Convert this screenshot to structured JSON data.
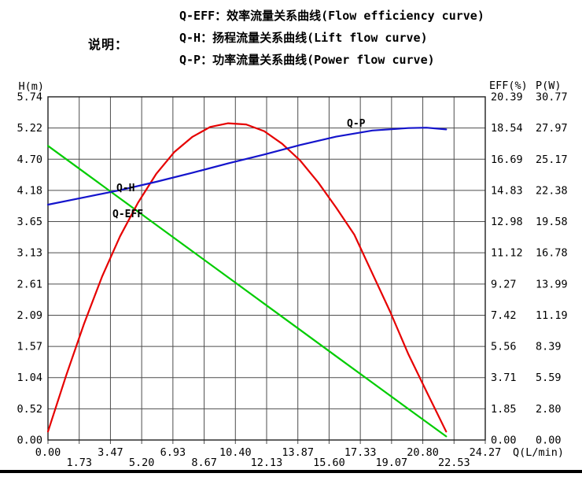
{
  "legend": {
    "title": "说明：",
    "lines": [
      "Q-EFF：效率流量关系曲线(Flow efficiency curve)",
      "Q-H：扬程流量关系曲线(Lift flow curve)",
      "Q-P：功率流量关系曲线(Power flow curve)"
    ]
  },
  "chart_data": {
    "type": "line",
    "grid": true,
    "colors": {
      "grid": "#4d4d4d",
      "border": "#1f1f1f",
      "text": "#000000"
    },
    "x_axis": {
      "label": "Q(L/min)",
      "min": 0,
      "max": 24.27,
      "ticks": [
        "0.00",
        "1.73",
        "3.47",
        "5.20",
        "6.93",
        "8.67",
        "10.40",
        "12.13",
        "13.87",
        "15.60",
        "17.33",
        "19.07",
        "20.80",
        "22.53",
        "24.27"
      ]
    },
    "y_axis_left": {
      "label": "H(m)",
      "min": 0,
      "max": 5.74,
      "ticks": [
        "5.74",
        "5.22",
        "4.70",
        "4.18",
        "3.65",
        "3.13",
        "2.61",
        "2.09",
        "1.57",
        "1.04",
        "0.52",
        "0.00"
      ]
    },
    "y_axis_eff": {
      "label": "EFF(%)",
      "min": 0,
      "max": 20.39,
      "ticks": [
        "20.39",
        "18.54",
        "16.69",
        "14.83",
        "12.98",
        "11.12",
        "9.27",
        "7.42",
        "5.56",
        "3.71",
        "1.85",
        "0.00"
      ]
    },
    "y_axis_p": {
      "label": "P(W)",
      "min": 0,
      "max": 30.77,
      "ticks": [
        "30.77",
        "27.97",
        "25.17",
        "22.38",
        "19.58",
        "16.78",
        "13.99",
        "11.19",
        "8.39",
        "5.59",
        "2.80",
        "0.00"
      ]
    },
    "series": [
      {
        "name": "Q-H",
        "description": "Lift flow curve (head, left axis)",
        "axis": "left",
        "color": "#00cc00",
        "points": [
          [
            0,
            4.92
          ],
          [
            2,
            4.48
          ],
          [
            4,
            4.04
          ],
          [
            6,
            3.6
          ],
          [
            8,
            3.16
          ],
          [
            10,
            2.72
          ],
          [
            12,
            2.28
          ],
          [
            14,
            1.84
          ],
          [
            16,
            1.4
          ],
          [
            18,
            0.96
          ],
          [
            20,
            0.52
          ],
          [
            22.1,
            0.06
          ]
        ]
      },
      {
        "name": "Q-EFF",
        "description": "Flow efficiency curve (eff axis)",
        "axis": "eff",
        "color": "#e60000",
        "points": [
          [
            0,
            0.5
          ],
          [
            1,
            3.8
          ],
          [
            2,
            6.9
          ],
          [
            3,
            9.7
          ],
          [
            4,
            12.1
          ],
          [
            5,
            14.1
          ],
          [
            6,
            15.8
          ],
          [
            7,
            17.1
          ],
          [
            8,
            18.0
          ],
          [
            9,
            18.6
          ],
          [
            10,
            18.82
          ],
          [
            11,
            18.75
          ],
          [
            12,
            18.35
          ],
          [
            13,
            17.6
          ],
          [
            14,
            16.6
          ],
          [
            15,
            15.3
          ],
          [
            16,
            13.8
          ],
          [
            17,
            12.2
          ],
          [
            18,
            9.9
          ],
          [
            19,
            7.6
          ],
          [
            20,
            5.1
          ],
          [
            21,
            2.9
          ],
          [
            22.1,
            0.5
          ]
        ]
      },
      {
        "name": "Q-P",
        "description": "Power flow curve (P axis)",
        "axis": "p",
        "color": "#1414cc",
        "points": [
          [
            0,
            21.1
          ],
          [
            2,
            21.75
          ],
          [
            4,
            22.4
          ],
          [
            6,
            23.15
          ],
          [
            8,
            23.95
          ],
          [
            10,
            24.8
          ],
          [
            12,
            25.6
          ],
          [
            14,
            26.45
          ],
          [
            16,
            27.2
          ],
          [
            18,
            27.75
          ],
          [
            20,
            27.97
          ],
          [
            21,
            28.0
          ],
          [
            22.1,
            27.85
          ]
        ]
      }
    ],
    "curve_labels": [
      "Q-H",
      "Q-EFF",
      "Q-P"
    ]
  }
}
